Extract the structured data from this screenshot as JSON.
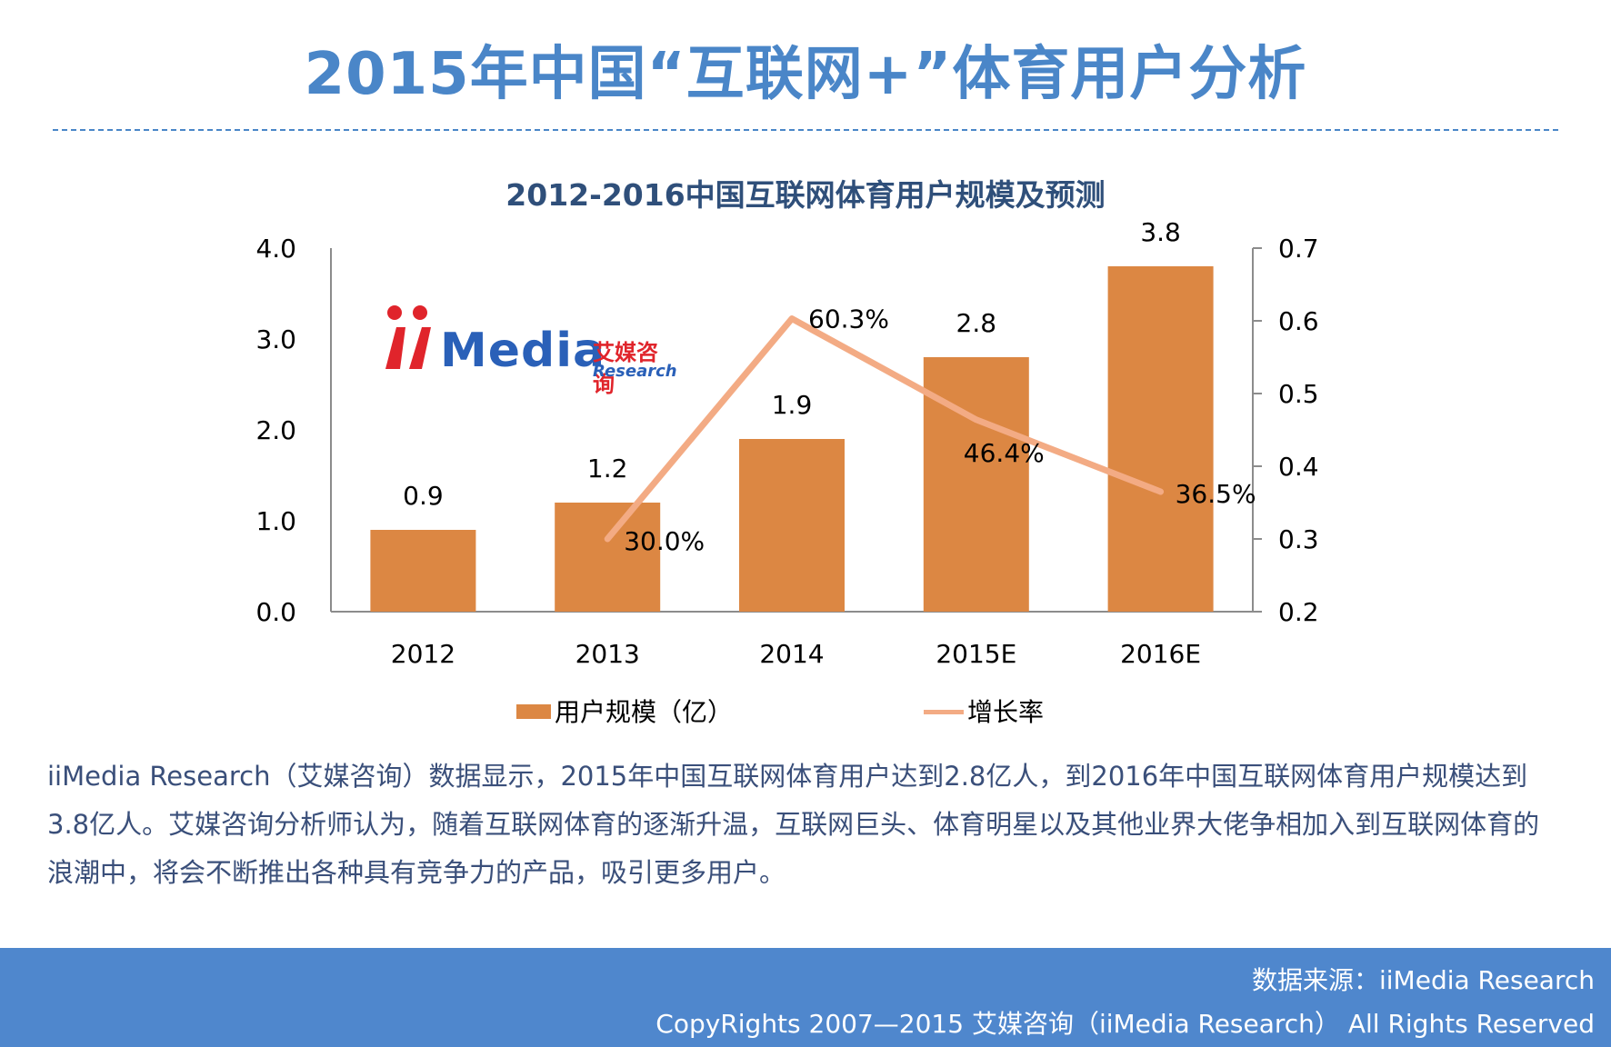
{
  "page": {
    "title": "2015年中国“互联网+”体育用户分析",
    "description": "iiMedia Research（艾媒咨询）数据显示，2015年中国互联网体育用户达到2.8亿人，到2016年中国互联网体育用户规模达到3.8亿人。艾媒咨询分析师认为，随着互联网体育的逐渐升温，互联网巨头、体育明星以及其他业界大佬争相加入到互联网体育的浪潮中，将会不断推出各种具有竞争力的产品，吸引更多用户。"
  },
  "logo": {
    "word": "Media",
    "cn": "艾媒咨询",
    "en": "Research"
  },
  "footer": {
    "source": "数据来源：iiMedia Research",
    "copyright": "CopyRights 2007—2015 艾媒咨询（iiMedia Research） All Rights Reserved"
  },
  "colors": {
    "bar": "#dc8743",
    "line": "#f3ab84",
    "title": "#4a86c8",
    "footer_bg": "#4f87cd"
  },
  "chart_data": {
    "type": "bar",
    "title": "2012-2016中国互联网体育用户规模及预测",
    "categories": [
      "2012",
      "2013",
      "2014",
      "2015E",
      "2016E"
    ],
    "series": [
      {
        "name": "用户规模（亿）",
        "type": "bar",
        "axis": "left",
        "values": [
          0.9,
          1.2,
          1.9,
          2.8,
          3.8
        ],
        "labels": [
          "0.9",
          "1.2",
          "1.9",
          "2.8",
          "3.8"
        ]
      },
      {
        "name": "增长率",
        "type": "line",
        "axis": "right",
        "values": [
          null,
          0.3,
          0.603,
          0.464,
          0.365
        ],
        "labels": [
          null,
          "30.0%",
          "60.3%",
          "46.4%",
          "36.5%"
        ]
      }
    ],
    "y_left": {
      "min": 0,
      "max": 4,
      "ticks": [
        "0.0",
        "1.0",
        "2.0",
        "3.0",
        "4.0"
      ]
    },
    "y_right": {
      "min": 0.2,
      "max": 0.7,
      "ticks": [
        "0.2",
        "0.3",
        "0.4",
        "0.5",
        "0.6",
        "0.7"
      ]
    },
    "grid": false,
    "legend_position": "bottom"
  }
}
